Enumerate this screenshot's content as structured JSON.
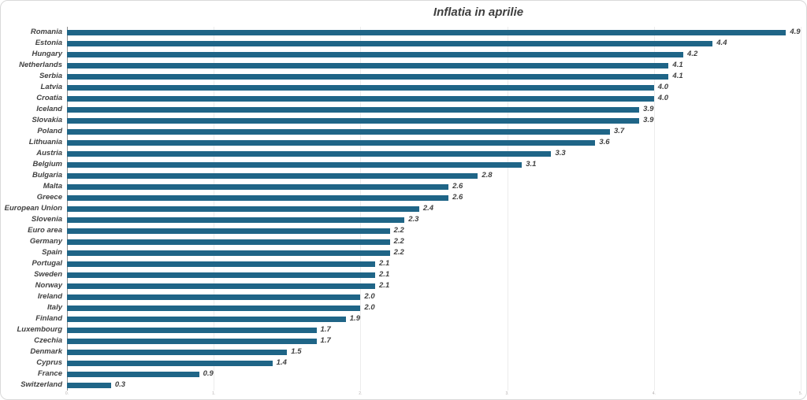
{
  "chart_data": {
    "type": "bar",
    "orientation": "horizontal",
    "title": "Inflatia in aprilie",
    "categories": [
      "Romania",
      "Estonia",
      "Hungary",
      "Netherlands",
      "Serbia",
      "Latvia",
      "Croatia",
      "Iceland",
      "Slovakia",
      "Poland",
      "Lithuania",
      "Austria",
      "Belgium",
      "Bulgaria",
      "Malta",
      "Greece",
      "European Union",
      "Slovenia",
      "Euro area",
      "Germany",
      "Spain",
      "Portugal",
      "Sweden",
      "Norway",
      "Ireland",
      "Italy",
      "Finland",
      "Luxembourg",
      "Czechia",
      "Denmark",
      "Cyprus",
      "France",
      "Switzerland"
    ],
    "values": [
      4.9,
      4.4,
      4.2,
      4.1,
      4.1,
      4.0,
      4.0,
      3.9,
      3.9,
      3.7,
      3.6,
      3.3,
      3.1,
      2.8,
      2.6,
      2.6,
      2.4,
      2.3,
      2.2,
      2.2,
      2.2,
      2.1,
      2.1,
      2.1,
      2.0,
      2.0,
      1.9,
      1.7,
      1.7,
      1.5,
      1.4,
      0.9,
      0.3
    ],
    "value_labels_shown": true,
    "xlabel": "",
    "ylabel": "",
    "xlim": [
      0,
      5
    ],
    "x_ticks": [
      0,
      1,
      2,
      3,
      4,
      5
    ],
    "x_tick_labels": [
      "0.",
      "1.",
      "2.",
      "3.",
      "4.",
      "5."
    ],
    "grid": "vertical-light",
    "legend": "none",
    "colors": {
      "bar": "#1F6587",
      "label_text": "#404040",
      "title_text": "#3F3F3F",
      "gridline": "#ECECEC",
      "axis_line": "#8C8C8C",
      "tick_label": "#B3AEAE",
      "chart_border": "#D9D9D9",
      "background": "#FFFFFF"
    }
  }
}
